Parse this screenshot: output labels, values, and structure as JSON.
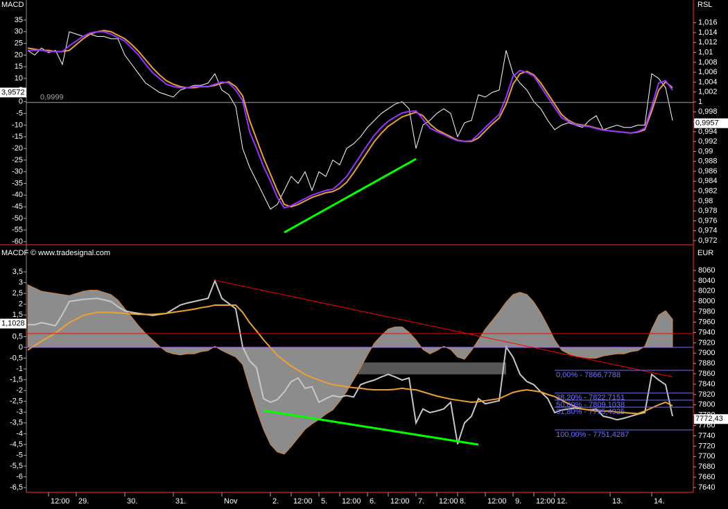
{
  "chart_data": [
    {
      "type": "line",
      "y_label": "MACD",
      "y2_label": "RSL",
      "ylim": [
        -61,
        43
      ],
      "yticks": [
        35,
        30,
        25,
        20,
        15,
        10,
        5,
        0,
        -5,
        -10,
        -15,
        -20,
        -25,
        -30,
        -35,
        -40,
        -45,
        -50,
        -55,
        -60
      ],
      "y2lim": [
        0.9713,
        1.0203
      ],
      "y2ticks": [
        {
          "value": 1.016,
          "label": "1,016"
        },
        {
          "value": 1.014,
          "label": "1,014"
        },
        {
          "value": 1.012,
          "label": "1,012"
        },
        {
          "value": 1.01,
          "label": "1,01"
        },
        {
          "value": 1.008,
          "label": "1,008"
        },
        {
          "value": 1.006,
          "label": "1,006"
        },
        {
          "value": 1.004,
          "label": "1,004"
        },
        {
          "value": 1.002,
          "label": "1,002"
        },
        1,
        {
          "value": 0.998,
          "label": "0,998"
        },
        {
          "value": 0.996,
          "label": "0,996"
        },
        {
          "value": 0.994,
          "label": "0,994"
        },
        {
          "value": 0.992,
          "label": "0,992"
        },
        {
          "value": 0.99,
          "label": "0,99"
        },
        {
          "value": 0.988,
          "label": "0,988"
        },
        {
          "value": 0.986,
          "label": "0,986"
        },
        {
          "value": 0.984,
          "label": "0,984"
        },
        {
          "value": 0.982,
          "label": "0,982"
        },
        {
          "value": 0.98,
          "label": "0,98"
        },
        {
          "value": 0.978,
          "label": "0,978"
        },
        {
          "value": 0.976,
          "label": "0,976"
        },
        {
          "value": 0.974,
          "label": "0,974"
        },
        {
          "value": 0.972,
          "label": "0,972"
        }
      ],
      "series": [
        {
          "color": "#ffffff",
          "values": [
            22,
            20,
            23,
            21,
            22,
            16,
            30,
            29,
            28,
            29,
            28,
            28,
            27,
            27,
            20,
            16,
            12,
            8,
            6,
            4,
            3,
            2,
            5,
            6,
            7,
            7,
            8,
            12,
            5,
            3,
            -2,
            -20,
            -28,
            -34,
            -40,
            -46,
            -44,
            -38,
            -32,
            -35,
            -30,
            -38,
            -30,
            -32,
            -25,
            -27,
            -20,
            -18,
            -15,
            -11,
            -8,
            -5,
            -3,
            -1,
            0,
            -3,
            -20,
            -10,
            -8,
            -5,
            -3,
            -5,
            -15,
            -9,
            -8,
            3,
            2,
            4,
            5,
            22,
            12,
            8,
            5,
            0,
            -3,
            -8,
            -12,
            -10,
            -9,
            -10,
            -11,
            -8,
            -6,
            -12,
            -11,
            -10,
            -11,
            -11,
            -10,
            -10,
            12,
            10,
            6,
            -8
          ]
        },
        {
          "color": "#e8a040",
          "values": [
            23,
            22.5,
            22,
            22,
            21.5,
            21.5,
            22,
            24.5,
            27,
            29,
            30,
            30.5,
            30,
            28.5,
            27,
            24.5,
            21.5,
            18,
            14.5,
            11.5,
            9,
            7.5,
            6.5,
            6,
            6,
            6.5,
            6.5,
            7,
            8,
            8.5,
            6.5,
            2.5,
            -8,
            -16,
            -24,
            -31,
            -38,
            -44,
            -45,
            -44,
            -42.5,
            -41,
            -40,
            -39,
            -38.5,
            -37,
            -34.5,
            -30.5,
            -26,
            -21.5,
            -17,
            -13.5,
            -10.5,
            -8.5,
            -6.5,
            -5.5,
            -4.5,
            -6,
            -9.5,
            -12,
            -13.5,
            -15,
            -16.5,
            -17,
            -17,
            -15.5,
            -12.5,
            -9.5,
            -7,
            -1,
            7.5,
            12,
            13,
            11.5,
            8,
            3.5,
            -1,
            -5.5,
            -8,
            -9.5,
            -10,
            -10.5,
            -11.3,
            -12,
            -12.5,
            -12.8,
            -13.1,
            -13.4,
            -13,
            -12,
            -4,
            5,
            8.5,
            6
          ]
        },
        {
          "color": "#9933ff",
          "values": [
            22,
            22,
            22,
            21.5,
            21.5,
            21.5,
            24,
            26,
            28,
            29.5,
            30,
            30,
            29,
            27.5,
            26,
            23,
            20,
            16,
            12.5,
            10,
            7.5,
            6.5,
            6,
            6,
            6.5,
            6.5,
            6.5,
            7.5,
            8.5,
            8,
            5,
            0.5,
            -12.8,
            -20,
            -27.7,
            -34,
            -41,
            -45.5,
            -44.5,
            -43,
            -41.5,
            -40,
            -39,
            -38,
            -37.5,
            -35,
            -32,
            -27.5,
            -23,
            -18.5,
            -14.3,
            -11,
            -8.3,
            -6.5,
            -4.8,
            -4.2,
            -3.9,
            -7.5,
            -11.3,
            -12.8,
            -14,
            -15.5,
            -16.7,
            -17,
            -16.7,
            -14,
            -11,
            -8.2,
            -5.4,
            2,
            11,
            13.4,
            12.5,
            11,
            6.5,
            2,
            -2.5,
            -6.8,
            -8.5,
            -9.8,
            -10.3,
            -10.7,
            -11.5,
            -12.2,
            -12.5,
            -12.8,
            -13.1,
            -13.4,
            -12.8,
            -11.3,
            -2,
            8,
            9,
            5
          ]
        }
      ],
      "hlines": [
        {
          "value": 0.9999,
          "axis": "y2",
          "color": "#a0a0a0",
          "label": "0,9999"
        }
      ],
      "markers": [
        {
          "value": 3.9572,
          "axis": "y",
          "label": "3,9572"
        },
        {
          "value": 0.9957,
          "axis": "y2",
          "label": "0,9957"
        }
      ],
      "trendlines": [
        {
          "color": "#00ff00",
          "axis": "y",
          "x": [
            37,
            56
          ],
          "values": [
            -56,
            -24.5
          ]
        }
      ]
    },
    {
      "type": "line",
      "y_label": "MACDF",
      "subtitle": "© www.tradesignal.com",
      "y2_label": "EUR",
      "categories": [
        null,
        null,
        null,
        "12:00",
        null,
        null,
        null,
        "29.",
        null,
        null,
        null,
        null,
        null,
        null,
        "30.",
        null,
        null,
        null,
        null,
        null,
        null,
        "31.",
        null,
        null,
        null,
        null,
        null,
        null,
        "Nov",
        null,
        null,
        null,
        null,
        null,
        null,
        "2.",
        null,
        null,
        "12:00",
        null,
        null,
        null,
        "5.",
        null,
        null,
        "12:00",
        null,
        null,
        null,
        "6.",
        null,
        null,
        "12:00",
        null,
        null,
        null,
        "7.",
        null,
        null,
        "12:00",
        null,
        null,
        "8.",
        null,
        null,
        null,
        "12:00",
        null,
        null,
        null,
        "9.",
        null,
        null,
        "12:00",
        null,
        null,
        "12.",
        null,
        null,
        null,
        null,
        null,
        null,
        null,
        "13.",
        null,
        null,
        null,
        null,
        null,
        "14.",
        null,
        null,
        null
      ],
      "ylim": [
        -6.72,
        4.69
      ],
      "yticks": [
        {
          "value": 3.5,
          "label": "3,5"
        },
        3,
        {
          "value": 2.5,
          "label": "2,5"
        },
        2,
        {
          "value": 1.5,
          "label": "1,5"
        },
        1,
        {
          "value": 0.5,
          "label": "0,5"
        },
        0,
        {
          "value": -0.5,
          "label": "-0,5"
        },
        -1,
        {
          "value": -1.5,
          "label": "-1,5"
        },
        -2,
        {
          "value": -2.5,
          "label": "-2,5"
        },
        -3,
        {
          "value": -3.5,
          "label": "-3,5"
        },
        -4,
        {
          "value": -4.5,
          "label": "-4,5"
        },
        -5,
        {
          "value": -5.5,
          "label": "-5,5"
        },
        -6,
        {
          "value": -6.5,
          "label": "-6,5"
        }
      ],
      "y2lim": [
        7630.6,
        8107
      ],
      "y2ticks": [
        8060,
        8040,
        8020,
        8000,
        7980,
        7960,
        7940,
        7920,
        7900,
        7880,
        7860,
        7840,
        7820,
        7800,
        7780,
        7760,
        7740,
        7720,
        7700,
        7680,
        7660,
        7640
      ],
      "series": [
        {
          "color": "#8c8c8c",
          "fill": true,
          "axis": "y",
          "values": [
            2.9,
            2.75,
            2.6,
            2.55,
            2.5,
            2.45,
            2.4,
            2.5,
            2.6,
            2.65,
            2.65,
            2.55,
            2.45,
            2.2,
            1.8,
            1.4,
            1.0,
            0.65,
            0.35,
            0.05,
            -0.2,
            -0.3,
            -0.35,
            -0.3,
            -0.3,
            -0.2,
            -0.15,
            0.05,
            -0.15,
            -0.3,
            -0.45,
            -0.8,
            -1.9,
            -2.9,
            -3.8,
            -4.5,
            -4.85,
            -4.95,
            -4.6,
            -4.2,
            -3.8,
            -3.55,
            -3.35,
            -3.1,
            -2.9,
            -2.5,
            -2.05,
            -1.5,
            -0.95,
            -0.35,
            0.2,
            0.55,
            0.85,
            0.95,
            0.95,
            0.7,
            0.35,
            -0.1,
            -0.3,
            -0.15,
            0.05,
            -0.1,
            -0.45,
            -0.55,
            -0.15,
            0.35,
            0.85,
            1.25,
            1.65,
            2.1,
            2.45,
            2.55,
            2.45,
            2.1,
            1.6,
            1.0,
            0.35,
            -0.13,
            -0.3,
            -0.4,
            -0.45,
            -0.5,
            -0.5,
            -0.4,
            -0.35,
            -0.3,
            -0.3,
            -0.2,
            -0.15,
            0.05,
            0.85,
            1.5,
            1.7,
            1.3
          ]
        },
        {
          "color": "#c8c8c8",
          "axis": "y2",
          "values": [
            7955,
            7955,
            7959,
            7956,
            7953,
            7975,
            8000,
            8002,
            8004,
            8005,
            8006,
            8003,
            8000,
            7990,
            7982,
            7979,
            7977,
            7975,
            7973,
            7975,
            7977,
            7985,
            7993,
            7997,
            8000,
            8003,
            8006,
            8040,
            8006,
            7996,
            7986,
            7912,
            7885,
            7872,
            7812,
            7805,
            7810,
            7825,
            7845,
            7852,
            7832,
            7835,
            7805,
            7812,
            7818,
            7815,
            7818,
            7815,
            7839,
            7844,
            7848,
            7854,
            7859,
            7854,
            7848,
            7852,
            7765,
            7792,
            7785,
            7788,
            7792,
            7805,
            7724,
            7765,
            7778,
            7812,
            7802,
            7805,
            7808,
            7912,
            7892,
            7859,
            7845,
            7839,
            7825,
            7812,
            7785,
            7790,
            7792,
            7794,
            7792,
            7790,
            7792,
            7778,
            7775,
            7771,
            7774,
            7778,
            7782,
            7785,
            7859,
            7848,
            7839,
            7778
          ]
        },
        {
          "color": "#f0a030",
          "axis": "y2",
          "values": [
            7906,
            7915,
            7923,
            7931,
            7939,
            7949,
            7959,
            7966,
            7973,
            7976,
            7979,
            7979,
            7979,
            7978,
            7977,
            7976,
            7975,
            7975,
            7975,
            7976,
            7977,
            7979,
            7981,
            7983,
            7985,
            7988,
            7990,
            7993,
            7993,
            7993,
            7993,
            7979,
            7959,
            7943,
            7926,
            7911,
            7896,
            7885,
            7875,
            7867,
            7859,
            7853,
            7848,
            7843,
            7839,
            7837,
            7835,
            7833,
            7832,
            7830,
            7829,
            7829,
            7829,
            7830,
            7832,
            7830,
            7829,
            7825,
            7821,
            7817,
            7814,
            7811,
            7809,
            7807,
            7805,
            7806,
            7808,
            7810,
            7812,
            7818,
            7824,
            7827,
            7829,
            7827,
            7825,
            7820,
            7816,
            7809,
            7802,
            7797,
            7792,
            7790,
            7788,
            7788,
            7788,
            7786,
            7785,
            7784,
            7783,
            7788,
            7794,
            7800,
            7805,
            7798
          ]
        }
      ],
      "hlines": [
        {
          "value": 0,
          "axis": "y",
          "color": "#9966ff"
        },
        {
          "value": 0.64,
          "axis": "y",
          "color": "#ff0000"
        }
      ],
      "markers": [
        {
          "value": 1.1028,
          "axis": "y",
          "label": "1,1028"
        },
        {
          "value": 7772.43,
          "axis": "y2",
          "label": "7772,43"
        }
      ],
      "trendlines": [
        {
          "color": "#ff0000",
          "axis": "y2",
          "x": [
            27,
            93
          ],
          "values": [
            8041,
            7854
          ]
        },
        {
          "color": "#00ff00",
          "axis": "y2",
          "x": [
            34,
            65
          ],
          "values": [
            7789,
            7723
          ]
        }
      ],
      "band": {
        "from": 34,
        "to": 69,
        "range": [
          7859,
          7882
        ],
        "color": "#7a7a7a"
      },
      "fib_levels": {
        "color": "#7070ff",
        "from": 76,
        "levels": [
          {
            "value": 7866.7788,
            "label": "0,00% - 7866,7788"
          },
          {
            "value": 7822.7151,
            "label": "38,20% - 7822,7151"
          },
          {
            "value": 7809.1038,
            "label": "50,00% - 7809,1038"
          },
          {
            "value": 7795.4925,
            "label": "61,80% - 7795,4925"
          },
          {
            "value": 7751.4287,
            "label": "100,00% - 7751,4287"
          }
        ]
      }
    }
  ]
}
